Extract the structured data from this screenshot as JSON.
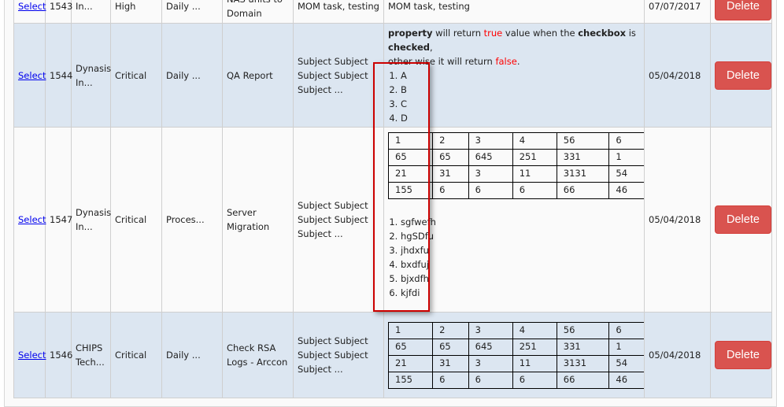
{
  "rows": [
    {
      "select": "Select",
      "id": "1543",
      "client": "In...",
      "priority": "High",
      "frequency": "Daily ...",
      "task": "NAS units to Domain",
      "subject": "MOM task, testing",
      "description_text": "MOM task, testing",
      "date": "07/07/2017",
      "delete": "Delete"
    },
    {
      "select": "Select",
      "id": "1544",
      "client": "Dynasis In...",
      "priority": "Critical",
      "frequency": "Daily ...",
      "task": "QA Report",
      "subject": "Subject Subject Subject Subject Subject ...",
      "description": {
        "b1": "property",
        "t1": " will return ",
        "r1": "true",
        "t2": " value when the ",
        "b2": "checkbox",
        "t3": " is ",
        "b3": "checked",
        "t4": ",",
        "t5": "other wise it will return ",
        "r2": "false",
        "t6": ".",
        "list": [
          "A",
          "B",
          "C",
          "D"
        ]
      },
      "date": "05/04/2018",
      "delete": "Delete"
    },
    {
      "select": "Select",
      "id": "1547",
      "client": "Dynasis In...",
      "priority": "Critical",
      "frequency": "Proces...",
      "task": "Server Migration",
      "subject": "Subject Subject Subject Subject Subject ...",
      "description": {
        "table": [
          [
            "1",
            "2",
            "3",
            "4",
            "56",
            "6"
          ],
          [
            "65",
            "65",
            "645",
            "251",
            "331",
            "1"
          ],
          [
            "21",
            "31",
            "3",
            "11",
            "3131",
            "54"
          ],
          [
            "155",
            "6",
            "6",
            "6",
            "66",
            "46"
          ]
        ],
        "list": [
          " sgfwefh",
          "hgSDfu",
          "jhdxfu",
          "bxdfuj",
          "bjxdfh",
          "kjfdi"
        ]
      },
      "date": "05/04/2018",
      "delete": "Delete"
    },
    {
      "select": "Select",
      "id": "1546",
      "client": "CHIPS Tech...",
      "priority": "Critical",
      "frequency": "Daily ...",
      "task": "Check RSA Logs - Arccon",
      "subject": "Subject Subject Subject Subject Subject ...",
      "description": {
        "table": [
          [
            "1",
            "2",
            "3",
            "4",
            "56",
            "6"
          ],
          [
            "65",
            "65",
            "645",
            "251",
            "331",
            "1"
          ],
          [
            "21",
            "31",
            "3",
            "11",
            "3131",
            "54"
          ],
          [
            "155",
            "6",
            "6",
            "6",
            "66",
            "46"
          ]
        ]
      },
      "date": "05/04/2018",
      "delete": "Delete"
    }
  ],
  "colors": {
    "alt_row": "#dce6f1",
    "delete_button": "#d9534f",
    "highlight_box": "#cc0000",
    "link": "#0000ee"
  }
}
